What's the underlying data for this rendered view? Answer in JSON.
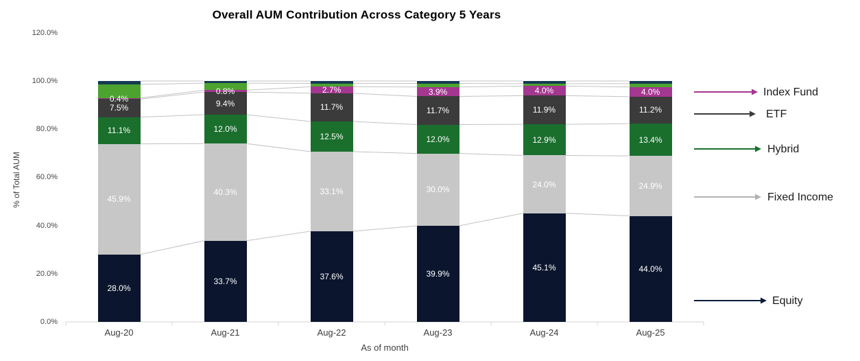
{
  "page": {
    "background": "#ffffff"
  },
  "chart_data": {
    "type": "bar",
    "variant": "stacked-100-column",
    "title": "Overall AUM Contribution Across Category 5 Years",
    "xlabel": "As of month",
    "ylabel": "% of Total AUM",
    "ylim": [
      0,
      120
    ],
    "ytick_labels": [
      "0.0%",
      "20.0%",
      "40.0%",
      "60.0%",
      "80.0%",
      "100.0%",
      "120.0%"
    ],
    "grid": "off",
    "categories": [
      "Aug-20",
      "Aug-21",
      "Aug-22",
      "Aug-23",
      "Aug-24",
      "Aug-25"
    ],
    "series": [
      {
        "name": "Equity",
        "color": "#0B162E",
        "labeled": true,
        "values": [
          28.0,
          33.7,
          37.6,
          39.9,
          45.1,
          44.0
        ]
      },
      {
        "name": "Fixed Income",
        "color": "#C7C7C7",
        "labeled": true,
        "values": [
          45.9,
          40.3,
          33.1,
          30.0,
          24.0,
          24.9
        ]
      },
      {
        "name": "Hybrid",
        "color": "#1A6F2D",
        "labeled": true,
        "values": [
          11.1,
          12.0,
          12.5,
          12.0,
          12.9,
          13.4
        ]
      },
      {
        "name": "ETF",
        "color": "#3B3B3B",
        "labeled": true,
        "values": [
          7.5,
          9.4,
          11.7,
          11.7,
          11.9,
          11.2
        ]
      },
      {
        "name": "Index Fund",
        "color": "#A43790",
        "labeled": true,
        "values": [
          0.4,
          0.8,
          2.7,
          3.9,
          4.0,
          4.0
        ]
      },
      {
        "name": "Unlabeled (light green)",
        "color": "#4CA32F",
        "labeled": false,
        "values": [
          5.7,
          2.9,
          1.4,
          1.5,
          1.0,
          1.4
        ]
      },
      {
        "name": "Unlabeled (dark blue)",
        "color": "#143A52",
        "labeled": false,
        "values": [
          1.4,
          0.9,
          1.0,
          1.0,
          1.1,
          1.1
        ]
      }
    ],
    "connector_line_color": "#C2C2C2",
    "axis_line_color": "#D3D3D3",
    "legend": {
      "position": "right",
      "style": "arrow-annotations",
      "entries": [
        {
          "label": "Index Fund",
          "color": "#A43790"
        },
        {
          "label": "ETF",
          "color": "#3B3B3B"
        },
        {
          "label": "Hybrid",
          "color": "#1A6F2D"
        },
        {
          "label": "Fixed Income",
          "color": "#B3B3B3"
        },
        {
          "label": "Equity",
          "color": "#0B1B3A"
        }
      ]
    }
  }
}
